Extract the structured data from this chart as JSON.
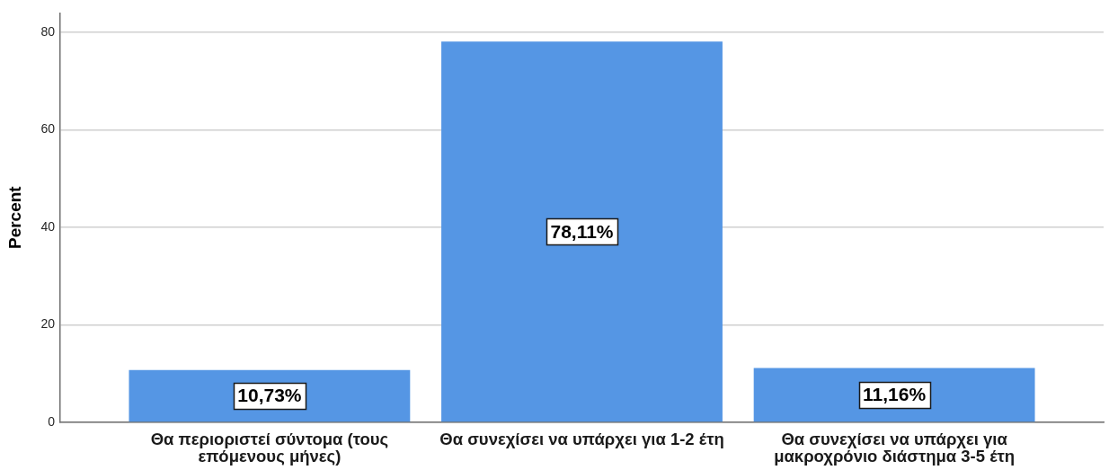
{
  "chart_data": {
    "type": "bar",
    "ylabel": "Percent",
    "categories": [
      "Θα περιοριστεί σύντομα (τους επόμενους μήνες)",
      "Θα συνεχίσει να υπάρχει για 1-2 έτη",
      "Θα συνεχίσει να υπάρχει για μακροχρόνιο διάστημα 3-5 έτη"
    ],
    "values": [
      10.73,
      78.11,
      11.16
    ],
    "value_labels": [
      "10,73%",
      "78,11%",
      "11,16%"
    ],
    "color": "#5596e4",
    "ylim": [
      0,
      84
    ],
    "yticks": [
      0,
      20,
      40,
      60,
      80
    ],
    "grid": "y"
  }
}
